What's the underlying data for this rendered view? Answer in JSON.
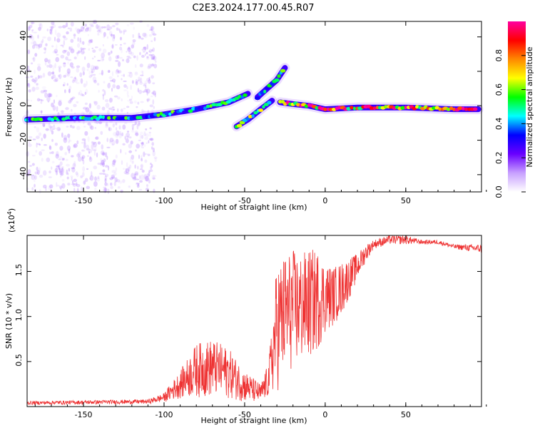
{
  "title": "C2E3.2024.177.00.45.R07",
  "chart_data": [
    {
      "type": "heatmap",
      "xlabel": "Height of straight line (km)",
      "ylabel": "Frequency (Hz)",
      "xlim": [
        -185,
        97
      ],
      "ylim": [
        -50,
        49
      ],
      "xticks": [
        -150,
        -100,
        -50,
        0,
        50
      ],
      "yticks": [
        -40,
        -20,
        0,
        20,
        40
      ],
      "colorbar": {
        "label": "Normalized spectral amplitude",
        "range": [
          0,
          1
        ],
        "ticks": [
          "0.0",
          "0.2",
          "0.4",
          "0.6",
          "0.8"
        ],
        "colormap": [
          "#ffffff",
          "#c8a0ff",
          "#6a00ff",
          "#0000ff",
          "#00ffff",
          "#00ff00",
          "#ffff00",
          "#ff8800",
          "#ff0000",
          "#ff00a0"
        ]
      },
      "traces": [
        {
          "name": "lower band",
          "x": [
            -185,
            -150,
            -120,
            -100,
            -80,
            -60,
            -48
          ],
          "y": [
            -8,
            -7,
            -7,
            -5,
            -2,
            2,
            7
          ],
          "amplitude": 0.45
        },
        {
          "name": "upper branch",
          "x": [
            -42,
            -36,
            -30,
            -25
          ],
          "y": [
            5,
            10,
            15,
            22
          ],
          "amplitude": 0.45
        },
        {
          "name": "middle branch",
          "x": [
            -55,
            -48,
            -40,
            -33
          ],
          "y": [
            -12,
            -8,
            -2,
            3
          ],
          "amplitude": 0.5
        },
        {
          "name": "stable signal",
          "x": [
            -28,
            -20,
            -10,
            0,
            20,
            50,
            80,
            95
          ],
          "y": [
            2,
            1,
            0,
            -2,
            -1,
            -1,
            -2,
            -2
          ],
          "amplitude": 0.8
        }
      ],
      "grid": false
    },
    {
      "type": "line",
      "xlabel": "Height of straight line (km)",
      "ylabel": "SNR (10 * v/v)",
      "scale_label_base": "(x10",
      "scale_label_exp": "4",
      "scale_label_end": ")",
      "xlim": [
        -185,
        97
      ],
      "ylim": [
        0,
        19000
      ],
      "xticks": [
        -150,
        -100,
        -50,
        0,
        50
      ],
      "yticks": [
        "0.5",
        "1.0",
        "1.5"
      ],
      "ytick_values": [
        5000,
        10000,
        15000
      ],
      "series_color": "#ee3333",
      "envelope": {
        "x": [
          -185,
          -110,
          -100,
          -90,
          -80,
          -70,
          -60,
          -50,
          -40,
          -35,
          -30,
          -25,
          -20,
          -15,
          -10,
          -5,
          0,
          5,
          10,
          15,
          20,
          25,
          30,
          40,
          50,
          60,
          70,
          80,
          97
        ],
        "low": [
          200,
          300,
          500,
          900,
          1000,
          1000,
          900,
          500,
          300,
          1000,
          1500,
          3000,
          4000,
          4500,
          5000,
          6000,
          8000,
          9000,
          10000,
          12000,
          14000,
          16000,
          17500,
          18000,
          18000,
          18000,
          18000,
          17500,
          17000
        ],
        "high": [
          600,
          800,
          1500,
          4000,
          7000,
          7500,
          6500,
          4000,
          2500,
          5000,
          16000,
          17000,
          17500,
          17000,
          17500,
          17500,
          16000,
          15500,
          16000,
          16500,
          17000,
          18000,
          18500,
          19000,
          19000,
          18500,
          18500,
          18000,
          18000
        ]
      },
      "grid": false
    }
  ]
}
